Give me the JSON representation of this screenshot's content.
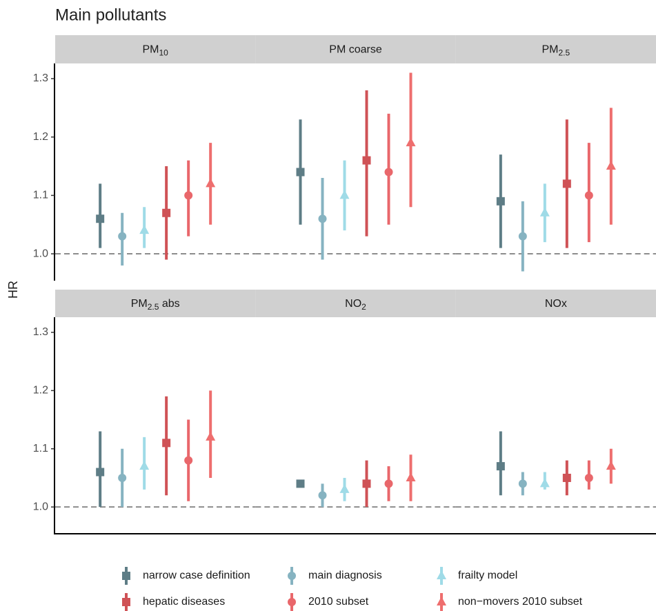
{
  "chart_data": {
    "type": "errorbar",
    "title": "Main pollutants",
    "ylabel": "HR",
    "panels": [
      {
        "title": {
          "text": "PM",
          "sub": "10"
        }
      },
      {
        "title": {
          "text": "PM coarse"
        }
      },
      {
        "title": {
          "text": "PM",
          "sub": "2.5"
        }
      },
      {
        "title": {
          "text": "PM",
          "sub": "2.5",
          "after": " abs"
        }
      },
      {
        "title": {
          "text": "NO",
          "sub": "2"
        }
      },
      {
        "title": {
          "text": "NOx"
        }
      }
    ],
    "series": [
      {
        "name": "narrow case definition",
        "color": "#5e7d86",
        "marker": "square",
        "values": [
          1.06,
          1.14,
          1.09,
          1.06,
          1.04,
          1.07
        ],
        "lower": [
          1.01,
          1.05,
          1.01,
          1.0,
          1.04,
          1.02
        ],
        "upper": [
          1.12,
          1.23,
          1.17,
          1.13,
          1.04,
          1.13
        ]
      },
      {
        "name": "main diagnosis",
        "color": "#86b3c1",
        "marker": "circle",
        "values": [
          1.03,
          1.06,
          1.03,
          1.05,
          1.02,
          1.04
        ],
        "lower": [
          0.98,
          0.99,
          0.97,
          1.0,
          1.0,
          1.02
        ],
        "upper": [
          1.07,
          1.13,
          1.09,
          1.1,
          1.04,
          1.06
        ]
      },
      {
        "name": "frailty model",
        "color": "#9fdbe7",
        "marker": "triangle",
        "values": [
          1.04,
          1.1,
          1.07,
          1.07,
          1.03,
          1.04
        ],
        "lower": [
          1.01,
          1.04,
          1.02,
          1.03,
          1.01,
          1.03
        ],
        "upper": [
          1.08,
          1.16,
          1.12,
          1.12,
          1.05,
          1.06
        ]
      },
      {
        "name": "hepatic diseases",
        "color": "#cf5256",
        "marker": "square",
        "values": [
          1.07,
          1.16,
          1.12,
          1.11,
          1.04,
          1.05
        ],
        "lower": [
          0.99,
          1.03,
          1.01,
          1.02,
          1.0,
          1.02
        ],
        "upper": [
          1.15,
          1.28,
          1.23,
          1.19,
          1.08,
          1.08
        ]
      },
      {
        "name": "2010 subset",
        "color": "#e9676b",
        "marker": "circle",
        "values": [
          1.1,
          1.14,
          1.1,
          1.08,
          1.04,
          1.05
        ],
        "lower": [
          1.03,
          1.05,
          1.02,
          1.01,
          1.01,
          1.03
        ],
        "upper": [
          1.16,
          1.24,
          1.19,
          1.15,
          1.07,
          1.08
        ]
      },
      {
        "name": "non−movers 2010 subset",
        "color": "#ee6e6e",
        "marker": "triangle",
        "values": [
          1.12,
          1.19,
          1.15,
          1.12,
          1.05,
          1.07
        ],
        "lower": [
          1.05,
          1.08,
          1.05,
          1.05,
          1.01,
          1.04
        ],
        "upper": [
          1.19,
          1.31,
          1.25,
          1.2,
          1.09,
          1.1
        ]
      }
    ],
    "ylim": [
      0.954,
      1.326
    ],
    "yticks": [
      {
        "value": 1.0,
        "label": "1.0"
      },
      1.1,
      1.2,
      1.3
    ],
    "hline": 1.0
  }
}
